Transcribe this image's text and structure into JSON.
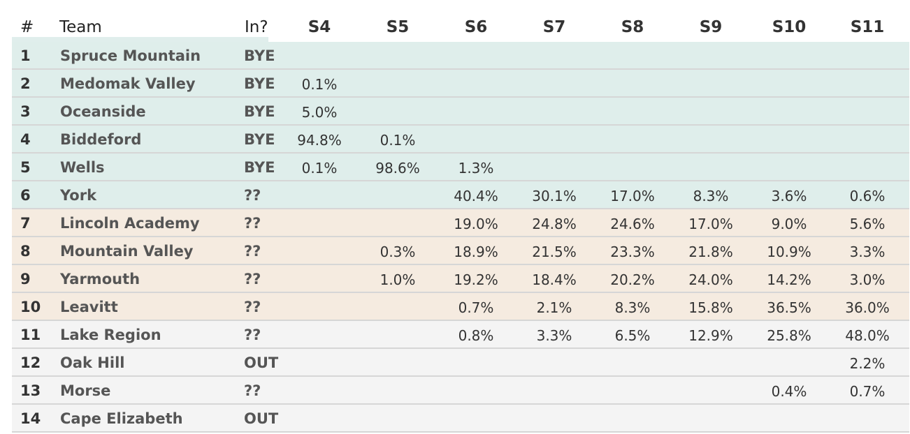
{
  "table": {
    "headers": {
      "rank": "#",
      "team": "Team",
      "in": "In?",
      "seeds": [
        "S4",
        "S5",
        "S6",
        "S7",
        "S8",
        "S9",
        "S10",
        "S11"
      ]
    },
    "rows": [
      {
        "rank": "1",
        "team": "Spruce Mountain",
        "status": "BYE",
        "group": "bye",
        "values": [
          "",
          "",
          "",
          "",
          "",
          "",
          "",
          ""
        ]
      },
      {
        "rank": "2",
        "team": "Medomak Valley",
        "status": "BYE",
        "group": "bye",
        "values": [
          "0.1%",
          "",
          "",
          "",
          "",
          "",
          "",
          ""
        ]
      },
      {
        "rank": "3",
        "team": "Oceanside",
        "status": "BYE",
        "group": "bye",
        "values": [
          "5.0%",
          "",
          "",
          "",
          "",
          "",
          "",
          ""
        ]
      },
      {
        "rank": "4",
        "team": "Biddeford",
        "status": "BYE",
        "group": "bye",
        "values": [
          "94.8%",
          "0.1%",
          "",
          "",
          "",
          "",
          "",
          ""
        ]
      },
      {
        "rank": "5",
        "team": "Wells",
        "status": "BYE",
        "group": "bye",
        "values": [
          "0.1%",
          "98.6%",
          "1.3%",
          "",
          "",
          "",
          "",
          ""
        ]
      },
      {
        "rank": "6",
        "team": "York",
        "status": "??",
        "group": "top",
        "values": [
          "",
          "",
          "40.4%",
          "30.1%",
          "17.0%",
          "8.3%",
          "3.6%",
          "0.6%"
        ]
      },
      {
        "rank": "7",
        "team": "Lincoln Academy",
        "status": "??",
        "group": "mid",
        "values": [
          "",
          "",
          "19.0%",
          "24.8%",
          "24.6%",
          "17.0%",
          "9.0%",
          "5.6%"
        ]
      },
      {
        "rank": "8",
        "team": "Mountain Valley",
        "status": "??",
        "group": "mid",
        "values": [
          "",
          "0.3%",
          "18.9%",
          "21.5%",
          "23.3%",
          "21.8%",
          "10.9%",
          "3.3%"
        ]
      },
      {
        "rank": "9",
        "team": "Yarmouth",
        "status": "??",
        "group": "mid",
        "values": [
          "",
          "1.0%",
          "19.2%",
          "18.4%",
          "20.2%",
          "24.0%",
          "14.2%",
          "3.0%"
        ]
      },
      {
        "rank": "10",
        "team": "Leavitt",
        "status": "??",
        "group": "mid",
        "values": [
          "",
          "",
          "0.7%",
          "2.1%",
          "8.3%",
          "15.8%",
          "36.5%",
          "36.0%"
        ]
      },
      {
        "rank": "11",
        "team": "Lake Region",
        "status": "??",
        "group": "out",
        "values": [
          "",
          "",
          "0.8%",
          "3.3%",
          "6.5%",
          "12.9%",
          "25.8%",
          "48.0%"
        ]
      },
      {
        "rank": "12",
        "team": "Oak Hill",
        "status": "OUT",
        "group": "out",
        "values": [
          "",
          "",
          "",
          "",
          "",
          "",
          "",
          "2.2%"
        ]
      },
      {
        "rank": "13",
        "team": "Morse",
        "status": "??",
        "group": "out",
        "values": [
          "",
          "",
          "",
          "",
          "",
          "",
          "0.4%",
          "0.7%"
        ]
      },
      {
        "rank": "14",
        "team": "Cape Elizabeth",
        "status": "OUT",
        "group": "out",
        "values": [
          "",
          "",
          "",
          "",
          "",
          "",
          "",
          ""
        ]
      }
    ]
  },
  "colors": {
    "bye_row": "#dfeeeb",
    "top_row": "#dfeeeb",
    "mid_row": "#f5ebe0",
    "out_row": "#f4f4f4",
    "row_divider": "#d6d6d6"
  }
}
